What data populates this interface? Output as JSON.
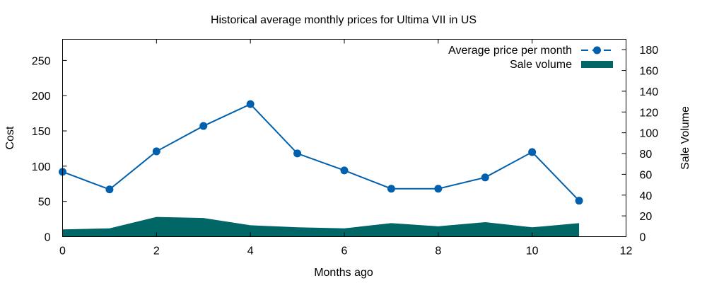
{
  "chart_data": {
    "type": "line",
    "title": "Historical average monthly prices for Ultima VII in US",
    "xlabel": "Months ago",
    "ylabel": "Cost",
    "y2label": "Sale Volume",
    "xlim": [
      0,
      12
    ],
    "ylim": [
      0,
      280
    ],
    "y2lim": [
      0,
      190
    ],
    "xticks": [
      0,
      2,
      4,
      6,
      8,
      10,
      12
    ],
    "yticks": [
      0,
      50,
      100,
      150,
      200,
      250
    ],
    "y2ticks": [
      0,
      20,
      40,
      60,
      80,
      100,
      120,
      140,
      160,
      180
    ],
    "grid": false,
    "legend_position": "top-right",
    "series": [
      {
        "name": "Average price per month",
        "kind": "line",
        "axis": "left",
        "color": "#0060ad",
        "x": [
          0,
          1,
          2,
          3,
          4,
          5,
          6,
          7,
          8,
          9,
          10,
          11
        ],
        "values": [
          92,
          67,
          121,
          157,
          188,
          118,
          94,
          68,
          68,
          84,
          120,
          51
        ]
      },
      {
        "name": "Sale volume",
        "kind": "area",
        "axis": "right",
        "color": "#006666",
        "x": [
          0,
          1,
          2,
          3,
          4,
          5,
          6,
          7,
          8,
          9,
          10,
          11
        ],
        "values": [
          7,
          8,
          19,
          18,
          11,
          9,
          8,
          13,
          10,
          14,
          9,
          13
        ]
      }
    ]
  }
}
